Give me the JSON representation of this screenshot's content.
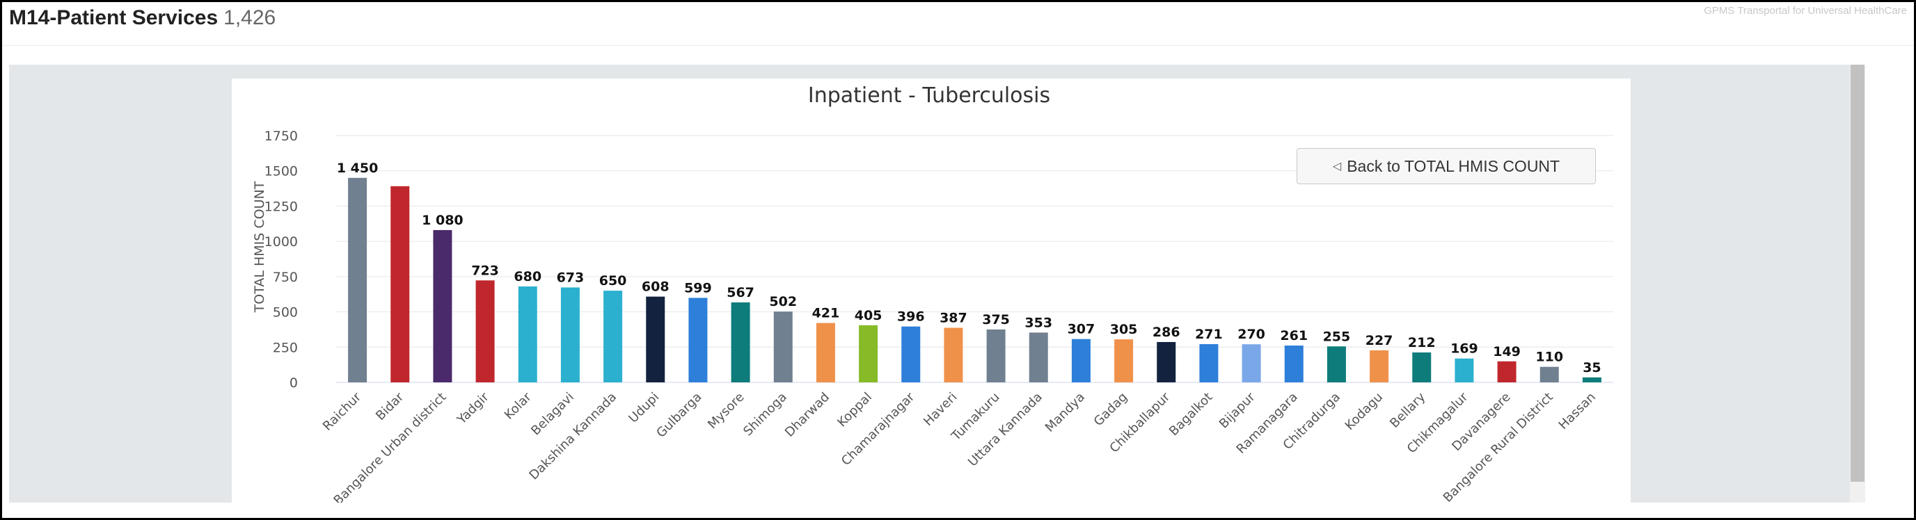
{
  "header": {
    "title": "M14-Patient Services",
    "count": "1,426",
    "brand": "GPMS Transportal for Universal HealthCare"
  },
  "back_button": {
    "label": "Back to TOTAL HMIS COUNT",
    "icon": "triangle-left-icon"
  },
  "chart_data": {
    "type": "bar",
    "title": "Inpatient - Tuberculosis",
    "xlabel": "",
    "ylabel": "TOTAL HMIS COUNT",
    "ylim": [
      0,
      1750
    ],
    "yticks": [
      0,
      250,
      500,
      750,
      1000,
      1250,
      1500,
      1750
    ],
    "grid": true,
    "categories": [
      "Raichur",
      "Bidar",
      "Bangalore Urban district",
      "Yadgir",
      "Kolar",
      "Belagavi",
      "Dakshina Kannada",
      "Udupi",
      "Gulbarga",
      "Mysore",
      "Shimoga",
      "Dharwad",
      "Koppal",
      "Chamarajnagar",
      "Haveri",
      "Tumakuru",
      "Uttara Kannada",
      "Mandya",
      "Gadag",
      "Chikballapur",
      "Bagalkot",
      "Bijapur",
      "Ramanagara",
      "Chitradurga",
      "Kodagu",
      "Bellary",
      "Chikmagalur",
      "Davanagere",
      "Bangalore Rural District",
      "Hassan"
    ],
    "values": [
      1450,
      1391,
      1080,
      723,
      680,
      673,
      650,
      608,
      599,
      567,
      502,
      421,
      405,
      396,
      387,
      375,
      353,
      307,
      305,
      286,
      271,
      270,
      261,
      255,
      227,
      212,
      169,
      149,
      110,
      35
    ],
    "data_labels": [
      "1 450",
      "",
      "1 080",
      "723",
      "680",
      "673",
      "650",
      "608",
      "599",
      "567",
      "502",
      "421",
      "405",
      "396",
      "387",
      "375",
      "353",
      "307",
      "305",
      "286",
      "271",
      "270",
      "261",
      "255",
      "227",
      "212",
      "169",
      "149",
      "110",
      "35"
    ],
    "colors": [
      "#708090",
      "#c0272d",
      "#4b2a6b",
      "#c0272d",
      "#2bb0cf",
      "#2bb0cf",
      "#2bb0cf",
      "#13233f",
      "#2d7fd9",
      "#0e7c7b",
      "#708090",
      "#f0914a",
      "#86bb27",
      "#2d7fd9",
      "#f0914a",
      "#708090",
      "#708090",
      "#2d7fd9",
      "#f0914a",
      "#13233f",
      "#2d7fd9",
      "#7aa7e8",
      "#2d7fd9",
      "#0e7c7b",
      "#f0914a",
      "#0e7c7b",
      "#2bb0cf",
      "#c0272d",
      "#708090",
      "#0e7c7b"
    ]
  }
}
